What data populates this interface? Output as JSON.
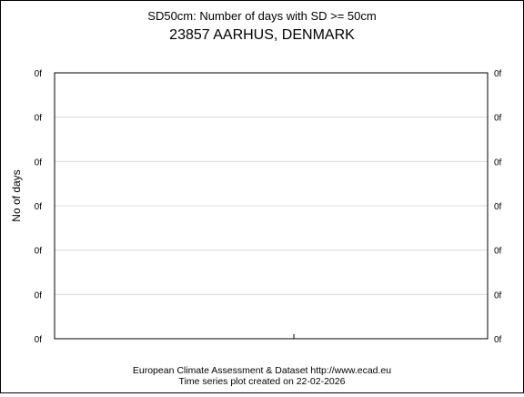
{
  "chart_data": {
    "type": "line",
    "title": "SD50cm: Number of days with SD >= 50cm",
    "subtitle": "23857 AARHUS, DENMARK",
    "ylabel": "No of days",
    "xlabel": "",
    "y_tick_labels": [
      "0f",
      "0f",
      "0f",
      "0f",
      "0f",
      "0f",
      "0f"
    ],
    "grid": true,
    "series": []
  },
  "footer": {
    "line1": "European Climate Assessment & Dataset  http://www.ecad.eu",
    "line2": "Time series plot created on 22-02-2026"
  }
}
